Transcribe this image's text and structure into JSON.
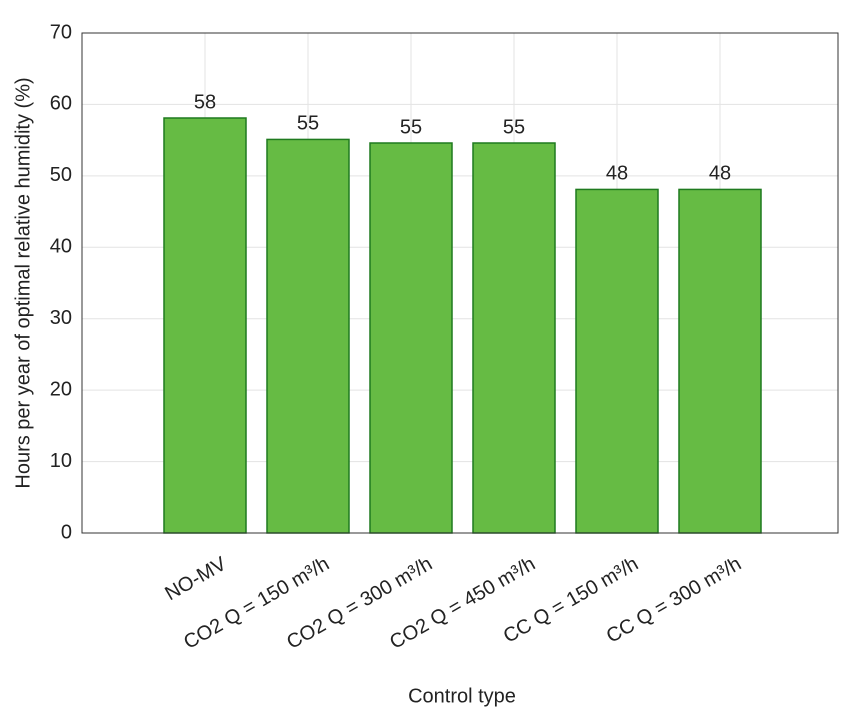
{
  "chart_data": {
    "type": "bar",
    "x_label": "Control type",
    "y_label": "Hours per year of optimal relative humidity (%)",
    "categories": [
      "NO-MV",
      "CO2 Q = 150 m³/h",
      "CO2 Q = 300 m³/h",
      "CO2 Q = 450 m³/h",
      "CC Q = 150 m³/h",
      "CC Q = 300 m³/h"
    ],
    "values": [
      58.1,
      55.1,
      54.6,
      54.6,
      48.1,
      48.1
    ],
    "value_labels": [
      "58",
      "55",
      "55",
      "55",
      "48",
      "48"
    ],
    "color": "#66bb44",
    "ylim": [
      0,
      70
    ],
    "yticks": [
      0,
      10,
      20,
      30,
      40,
      50,
      60,
      70
    ],
    "grid": true
  }
}
